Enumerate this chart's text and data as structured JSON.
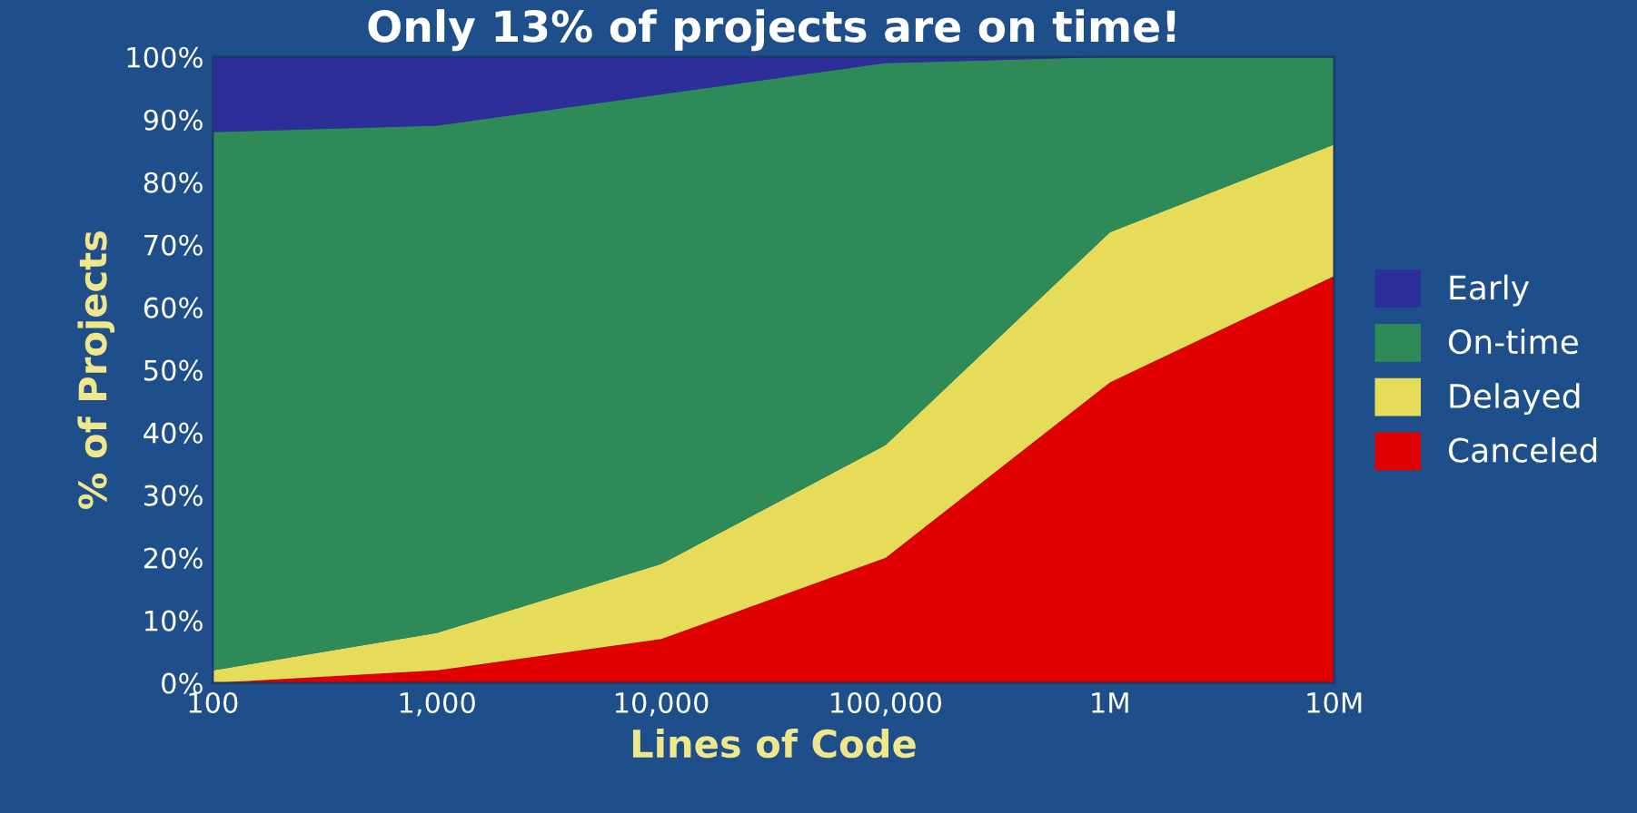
{
  "chart_data": {
    "type": "area",
    "stacked": true,
    "title": "Only 13% of projects are on time!",
    "xlabel": "Lines of Code",
    "ylabel": "% of Projects",
    "x": [
      100,
      1000,
      10000,
      100000,
      1000000,
      10000000
    ],
    "series": [
      {
        "name": "Canceled",
        "color": "#e00000",
        "values": [
          0,
          2,
          7,
          20,
          48,
          65
        ]
      },
      {
        "name": "Delayed",
        "color": "#e6dc5a",
        "values": [
          2,
          6,
          12,
          18,
          24,
          21
        ]
      },
      {
        "name": "On-time",
        "color": "#2e8b57",
        "values": [
          86,
          81,
          75,
          61,
          28,
          14
        ]
      },
      {
        "name": "Early",
        "color": "#2e2e9a",
        "values": [
          12,
          11,
          6,
          1,
          0,
          0
        ]
      }
    ],
    "log": "x",
    "xlim": [
      100,
      10000000
    ],
    "xticks": [
      100,
      {
        "value": 1000,
        "label": "1,000"
      },
      {
        "value": 10000,
        "label": "10,000"
      },
      {
        "value": 100000,
        "label": "100,000"
      },
      {
        "value": 1000000,
        "label": "1M"
      },
      {
        "value": 10000000,
        "label": "10M"
      }
    ],
    "ylim": [
      0,
      100
    ],
    "yticks": [
      {
        "value": 0,
        "label": "0%"
      },
      {
        "value": 10,
        "label": "10%"
      },
      {
        "value": 20,
        "label": "20%"
      },
      {
        "value": 30,
        "label": "30%"
      },
      {
        "value": 40,
        "label": "40%"
      },
      {
        "value": 50,
        "label": "50%"
      },
      {
        "value": 60,
        "label": "60%"
      },
      {
        "value": 70,
        "label": "70%"
      },
      {
        "value": 80,
        "label": "80%"
      },
      {
        "value": 90,
        "label": "90%"
      },
      {
        "value": 100,
        "label": "100%"
      }
    ],
    "legend": "right",
    "grid": false
  }
}
